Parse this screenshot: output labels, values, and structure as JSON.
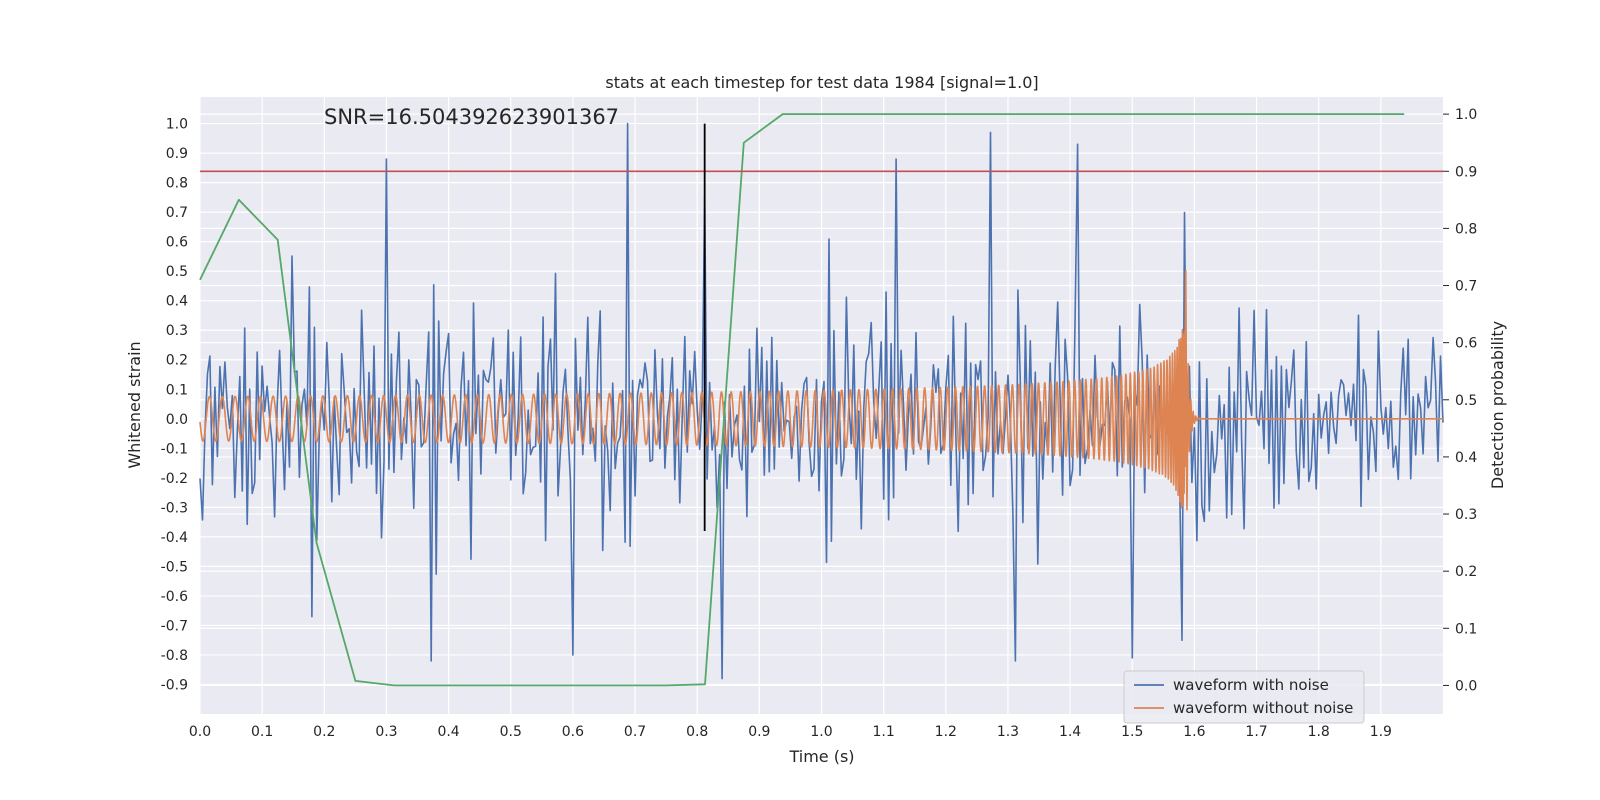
{
  "chart_data": {
    "type": "line",
    "title": "stats at each timestep for test data 1984 [signal=1.0]",
    "xlabel": "Time (s)",
    "ylabel_left": "Whitened strain",
    "ylabel_right": "Detection probability",
    "annotation": "SNR=16.504392623901367",
    "xlim": [
      0.0,
      2.0
    ],
    "ylim_left": [
      -1.0,
      1.09
    ],
    "ylim_right": [
      -0.05,
      1.03
    ],
    "x_ticks": [
      "0.0",
      "0.1",
      "0.2",
      "0.3",
      "0.4",
      "0.5",
      "0.6",
      "0.7",
      "0.8",
      "0.9",
      "1.0",
      "1.1",
      "1.2",
      "1.3",
      "1.4",
      "1.5",
      "1.6",
      "1.7",
      "1.8",
      "1.9"
    ],
    "y_ticks_left": [
      "1.0",
      "0.9",
      "0.8",
      "0.7",
      "0.6",
      "0.5",
      "0.4",
      "0.3",
      "0.2",
      "0.1",
      "0.0",
      "-0.1",
      "-0.2",
      "-0.3",
      "-0.4",
      "-0.5",
      "-0.6",
      "-0.7",
      "-0.8",
      "-0.9"
    ],
    "y_ticks_right": [
      "1.0",
      "0.9",
      "0.8",
      "0.7",
      "0.6",
      "0.5",
      "0.4",
      "0.3",
      "0.2",
      "0.1",
      "0.0"
    ],
    "grid": true,
    "legend_position": "bottom-right",
    "threshold_line": {
      "axis": "right",
      "y": 0.9,
      "color": "#c44e52"
    },
    "vertical_marker": {
      "x": 0.812,
      "y_left": [
        -0.38,
        1.0
      ],
      "color": "#000000"
    },
    "series": [
      {
        "name": "waveform with noise",
        "axis": "left",
        "color": "#4c72b0",
        "style": "noise",
        "sample_step": 0.004,
        "amplitude_envelope": 0.42,
        "peaks": [
          {
            "x": 0.3,
            "y": 0.88
          },
          {
            "x": 0.69,
            "y": 1.0
          },
          {
            "x": 0.81,
            "y": 0.75
          },
          {
            "x": 1.12,
            "y": 0.88
          },
          {
            "x": 1.27,
            "y": 0.97
          },
          {
            "x": 1.41,
            "y": 0.93
          },
          {
            "x": 0.18,
            "y": -0.67
          },
          {
            "x": 0.37,
            "y": -0.82
          },
          {
            "x": 0.6,
            "y": -0.8
          },
          {
            "x": 0.84,
            "y": -0.88
          },
          {
            "x": 1.31,
            "y": -0.82
          },
          {
            "x": 1.5,
            "y": -0.81
          },
          {
            "x": 1.58,
            "y": -0.75
          }
        ]
      },
      {
        "name": "waveform without noise",
        "axis": "left",
        "color": "#dd8452",
        "style": "chirp",
        "merger_time": 1.585,
        "initial_amplitude": 0.075,
        "peak_amplitude": 0.67,
        "initial_frequency_hz": 48
      },
      {
        "name": "",
        "axis": "right",
        "color": "#55a868",
        "style": "line",
        "x": [
          0.0,
          0.0625,
          0.125,
          0.1875,
          0.25,
          0.3125,
          0.5,
          0.75,
          0.8125,
          0.875,
          0.9375,
          1.0,
          1.25,
          1.5,
          1.75,
          1.9375
        ],
        "y": [
          0.71,
          0.85,
          0.78,
          0.25,
          0.008,
          0.0,
          0.0,
          0.0,
          0.002,
          0.95,
          1.0,
          1.0,
          1.0,
          1.0,
          1.0,
          1.0
        ]
      }
    ],
    "legend": [
      "waveform with noise",
      "waveform without noise"
    ]
  }
}
